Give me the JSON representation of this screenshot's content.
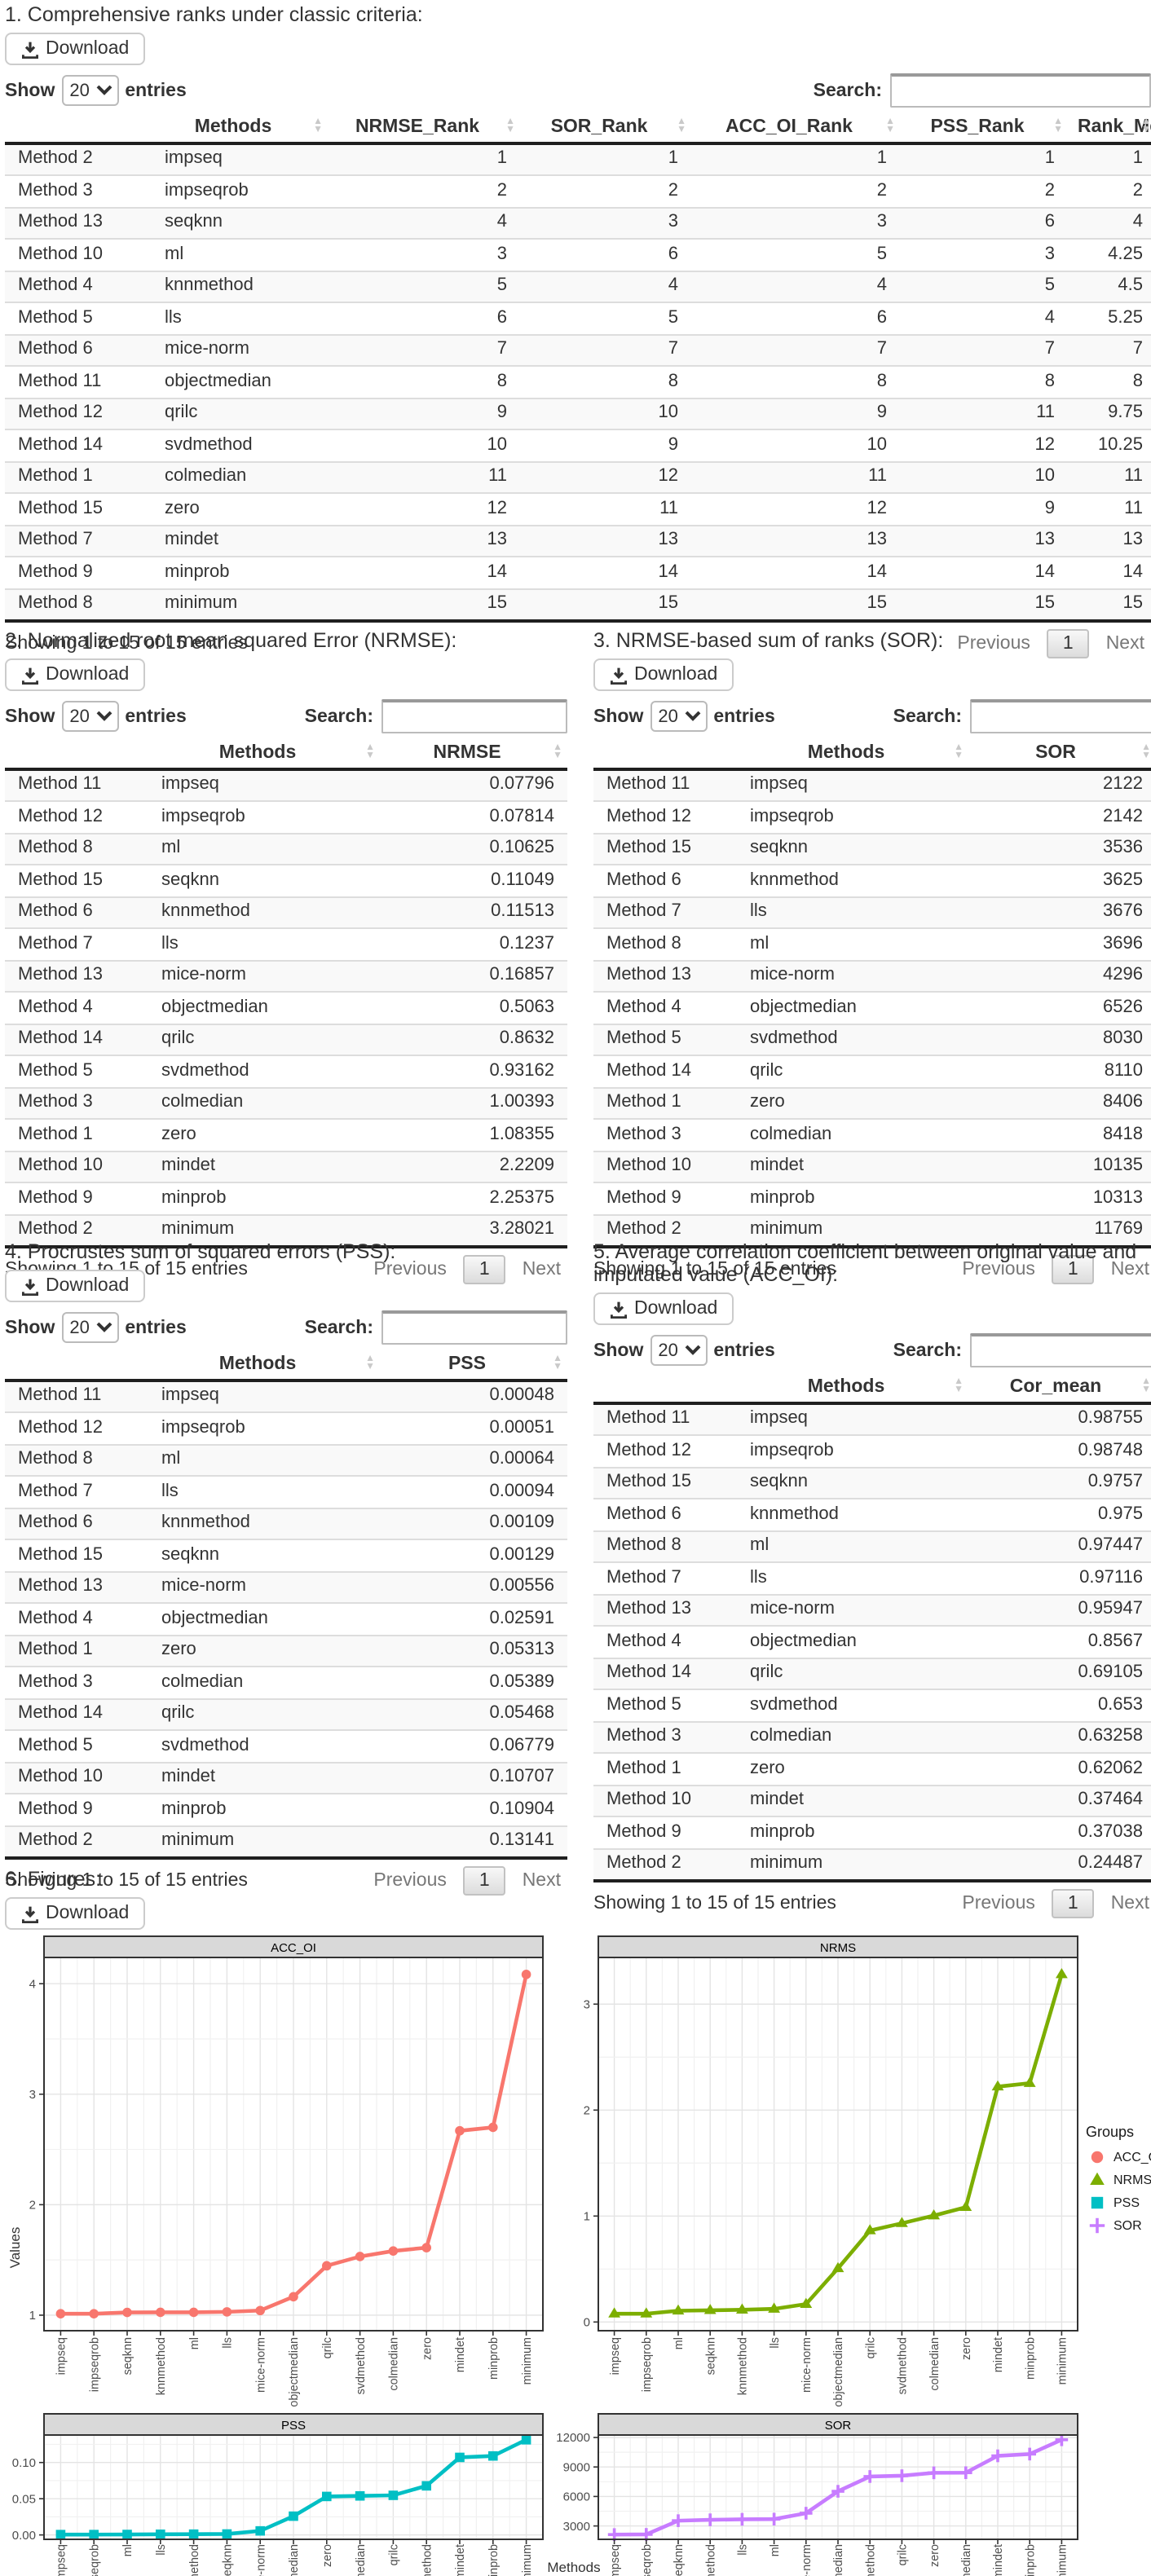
{
  "controls": {
    "download_label": "Download",
    "show_label": "Show",
    "page_size": "20",
    "entries_label": "entries",
    "search_label": "Search:",
    "info": "Showing 1 to 15 of 15 entries",
    "previous_label": "Previous",
    "page_number": "1",
    "next_label": "Next"
  },
  "sections": {
    "ranks": {
      "title": "1. Comprehensive ranks under classic criteria:",
      "columns": [
        "Methods",
        "NRMSE_Rank",
        "SOR_Rank",
        "ACC_OI_Rank",
        "PSS_Rank",
        "Rank_Mean"
      ],
      "rows": [
        [
          "Method 2",
          "impseq",
          "1",
          "1",
          "1",
          "1",
          "1"
        ],
        [
          "Method 3",
          "impseqrob",
          "2",
          "2",
          "2",
          "2",
          "2"
        ],
        [
          "Method 13",
          "seqknn",
          "4",
          "3",
          "3",
          "6",
          "4"
        ],
        [
          "Method 10",
          "ml",
          "3",
          "6",
          "5",
          "3",
          "4.25"
        ],
        [
          "Method 4",
          "knnmethod",
          "5",
          "4",
          "4",
          "5",
          "4.5"
        ],
        [
          "Method 5",
          "lls",
          "6",
          "5",
          "6",
          "4",
          "5.25"
        ],
        [
          "Method 6",
          "mice-norm",
          "7",
          "7",
          "7",
          "7",
          "7"
        ],
        [
          "Method 11",
          "objectmedian",
          "8",
          "8",
          "8",
          "8",
          "8"
        ],
        [
          "Method 12",
          "qrilc",
          "9",
          "10",
          "9",
          "11",
          "9.75"
        ],
        [
          "Method 14",
          "svdmethod",
          "10",
          "9",
          "10",
          "12",
          "10.25"
        ],
        [
          "Method 1",
          "colmedian",
          "11",
          "12",
          "11",
          "10",
          "11"
        ],
        [
          "Method 15",
          "zero",
          "12",
          "11",
          "12",
          "9",
          "11"
        ],
        [
          "Method 7",
          "mindet",
          "13",
          "13",
          "13",
          "13",
          "13"
        ],
        [
          "Method 9",
          "minprob",
          "14",
          "14",
          "14",
          "14",
          "14"
        ],
        [
          "Method 8",
          "minimum",
          "15",
          "15",
          "15",
          "15",
          "15"
        ]
      ]
    },
    "nrmse": {
      "title": "2. Normalized root mean squared Error (NRMSE):",
      "columns": [
        "Methods",
        "NRMSE"
      ],
      "rows": [
        [
          "Method 11",
          "impseq",
          "0.07796"
        ],
        [
          "Method 12",
          "impseqrob",
          "0.07814"
        ],
        [
          "Method 8",
          "ml",
          "0.10625"
        ],
        [
          "Method 15",
          "seqknn",
          "0.11049"
        ],
        [
          "Method 6",
          "knnmethod",
          "0.11513"
        ],
        [
          "Method 7",
          "lls",
          "0.1237"
        ],
        [
          "Method 13",
          "mice-norm",
          "0.16857"
        ],
        [
          "Method 4",
          "objectmedian",
          "0.5063"
        ],
        [
          "Method 14",
          "qrilc",
          "0.8632"
        ],
        [
          "Method 5",
          "svdmethod",
          "0.93162"
        ],
        [
          "Method 3",
          "colmedian",
          "1.00393"
        ],
        [
          "Method 1",
          "zero",
          "1.08355"
        ],
        [
          "Method 10",
          "mindet",
          "2.2209"
        ],
        [
          "Method 9",
          "minprob",
          "2.25375"
        ],
        [
          "Method 2",
          "minimum",
          "3.28021"
        ]
      ]
    },
    "sor": {
      "title": "3. NRMSE-based sum of ranks (SOR):",
      "columns": [
        "Methods",
        "SOR"
      ],
      "rows": [
        [
          "Method 11",
          "impseq",
          "2122"
        ],
        [
          "Method 12",
          "impseqrob",
          "2142"
        ],
        [
          "Method 15",
          "seqknn",
          "3536"
        ],
        [
          "Method 6",
          "knnmethod",
          "3625"
        ],
        [
          "Method 7",
          "lls",
          "3676"
        ],
        [
          "Method 8",
          "ml",
          "3696"
        ],
        [
          "Method 13",
          "mice-norm",
          "4296"
        ],
        [
          "Method 4",
          "objectmedian",
          "6526"
        ],
        [
          "Method 5",
          "svdmethod",
          "8030"
        ],
        [
          "Method 14",
          "qrilc",
          "8110"
        ],
        [
          "Method 1",
          "zero",
          "8406"
        ],
        [
          "Method 3",
          "colmedian",
          "8418"
        ],
        [
          "Method 10",
          "mindet",
          "10135"
        ],
        [
          "Method 9",
          "minprob",
          "10313"
        ],
        [
          "Method 2",
          "minimum",
          "11769"
        ]
      ]
    },
    "pss": {
      "title": "4. Procrustes sum of squared errors (PSS):",
      "columns": [
        "Methods",
        "PSS"
      ],
      "rows": [
        [
          "Method 11",
          "impseq",
          "0.00048"
        ],
        [
          "Method 12",
          "impseqrob",
          "0.00051"
        ],
        [
          "Method 8",
          "ml",
          "0.00064"
        ],
        [
          "Method 7",
          "lls",
          "0.00094"
        ],
        [
          "Method 6",
          "knnmethod",
          "0.00109"
        ],
        [
          "Method 15",
          "seqknn",
          "0.00129"
        ],
        [
          "Method 13",
          "mice-norm",
          "0.00556"
        ],
        [
          "Method 4",
          "objectmedian",
          "0.02591"
        ],
        [
          "Method 1",
          "zero",
          "0.05313"
        ],
        [
          "Method 3",
          "colmedian",
          "0.05389"
        ],
        [
          "Method 14",
          "qrilc",
          "0.05468"
        ],
        [
          "Method 5",
          "svdmethod",
          "0.06779"
        ],
        [
          "Method 10",
          "mindet",
          "0.10707"
        ],
        [
          "Method 9",
          "minprob",
          "0.10904"
        ],
        [
          "Method 2",
          "minimum",
          "0.13141"
        ]
      ]
    },
    "acc": {
      "title": "5. Average correlation coefficient between original value and imputated value (ACC_OI):",
      "columns": [
        "Methods",
        "Cor_mean"
      ],
      "rows": [
        [
          "Method 11",
          "impseq",
          "0.98755"
        ],
        [
          "Method 12",
          "impseqrob",
          "0.98748"
        ],
        [
          "Method 15",
          "seqknn",
          "0.9757"
        ],
        [
          "Method 6",
          "knnmethod",
          "0.975"
        ],
        [
          "Method 8",
          "ml",
          "0.97447"
        ],
        [
          "Method 7",
          "lls",
          "0.97116"
        ],
        [
          "Method 13",
          "mice-norm",
          "0.95947"
        ],
        [
          "Method 4",
          "objectmedian",
          "0.8567"
        ],
        [
          "Method 14",
          "qrilc",
          "0.69105"
        ],
        [
          "Method 5",
          "svdmethod",
          "0.653"
        ],
        [
          "Method 3",
          "colmedian",
          "0.63258"
        ],
        [
          "Method 1",
          "zero",
          "0.62062"
        ],
        [
          "Method 10",
          "mindet",
          "0.37464"
        ],
        [
          "Method 9",
          "minprob",
          "0.37038"
        ],
        [
          "Method 2",
          "minimum",
          "0.24487"
        ]
      ]
    },
    "figures": {
      "title": "6. Figures:",
      "ylabel": "Values",
      "xlabel": "Methods",
      "legend_title": "Groups",
      "legend_entries": [
        {
          "label": "ACC_OI",
          "color": "#F8766D",
          "marker": "circle"
        },
        {
          "label": "NRMS",
          "color": "#7CAE00",
          "marker": "triangle"
        },
        {
          "label": "PSS",
          "color": "#00BFC4",
          "marker": "square"
        },
        {
          "label": "SOR",
          "color": "#C77CFF",
          "marker": "plus"
        }
      ]
    }
  },
  "chart_data": [
    {
      "type": "line",
      "title": "ACC_OI",
      "color": "#F8766D",
      "marker": "circle",
      "categories": [
        "impseq",
        "impseqrob",
        "seqknn",
        "knnmethod",
        "ml",
        "lls",
        "mice-norm",
        "objectmedian",
        "qrilc",
        "svdmethod",
        "colmedian",
        "zero",
        "mindet",
        "minprob",
        "minimum"
      ],
      "values": [
        1.013,
        1.013,
        1.025,
        1.026,
        1.026,
        1.03,
        1.042,
        1.167,
        1.447,
        1.531,
        1.581,
        1.611,
        2.669,
        2.7,
        4.084
      ],
      "yticks": [
        1,
        2,
        3,
        4
      ],
      "ytick_labels": [
        "1",
        "2",
        "3",
        "4"
      ],
      "grid": true,
      "legend_position": "right"
    },
    {
      "type": "line",
      "title": "NRMS",
      "color": "#7CAE00",
      "marker": "triangle",
      "categories": [
        "impseq",
        "impseqrob",
        "ml",
        "seqknn",
        "knnmethod",
        "lls",
        "mice-norm",
        "objectmedian",
        "qrilc",
        "svdmethod",
        "colmedian",
        "zero",
        "mindet",
        "minprob",
        "minimum"
      ],
      "values": [
        0.07796,
        0.07814,
        0.10625,
        0.11049,
        0.11513,
        0.1237,
        0.16857,
        0.5063,
        0.8632,
        0.93162,
        1.00393,
        1.08355,
        2.2209,
        2.25375,
        3.28021
      ],
      "yticks": [
        0,
        1,
        2,
        3
      ],
      "ytick_labels": [
        "0",
        "1",
        "2",
        "3"
      ],
      "grid": true,
      "legend_position": "right"
    },
    {
      "type": "line",
      "title": "PSS",
      "color": "#00BFC4",
      "marker": "square",
      "categories": [
        "impseq",
        "impseqrob",
        "ml",
        "lls",
        "knnmethod",
        "seqknn",
        "mice-norm",
        "objectmedian",
        "zero",
        "colmedian",
        "qrilc",
        "svdmethod",
        "mindet",
        "minprob",
        "minimum"
      ],
      "values": [
        0.00048,
        0.00051,
        0.00064,
        0.00094,
        0.00109,
        0.00129,
        0.00556,
        0.02591,
        0.05313,
        0.05389,
        0.05468,
        0.06779,
        0.10707,
        0.10904,
        0.13141
      ],
      "yticks": [
        0,
        0.05,
        0.1
      ],
      "ytick_labels": [
        "0.00",
        "0.05",
        "0.10"
      ],
      "grid": true,
      "legend_position": "right"
    },
    {
      "type": "line",
      "title": "SOR",
      "color": "#C77CFF",
      "marker": "plus",
      "categories": [
        "impseq",
        "impseqrob",
        "seqknn",
        "knnmethod",
        "lls",
        "ml",
        "mice-norm",
        "objectmedian",
        "svdmethod",
        "qrilc",
        "zero",
        "colmedian",
        "mindet",
        "minprob",
        "minimum"
      ],
      "values": [
        2122,
        2142,
        3536,
        3625,
        3676,
        3696,
        4296,
        6526,
        8030,
        8110,
        8406,
        8418,
        10135,
        10313,
        11769
      ],
      "yticks": [
        3000,
        6000,
        9000,
        12000
      ],
      "ytick_labels": [
        "3000",
        "6000",
        "9000",
        "12000"
      ],
      "grid": true,
      "legend_position": "right"
    }
  ]
}
